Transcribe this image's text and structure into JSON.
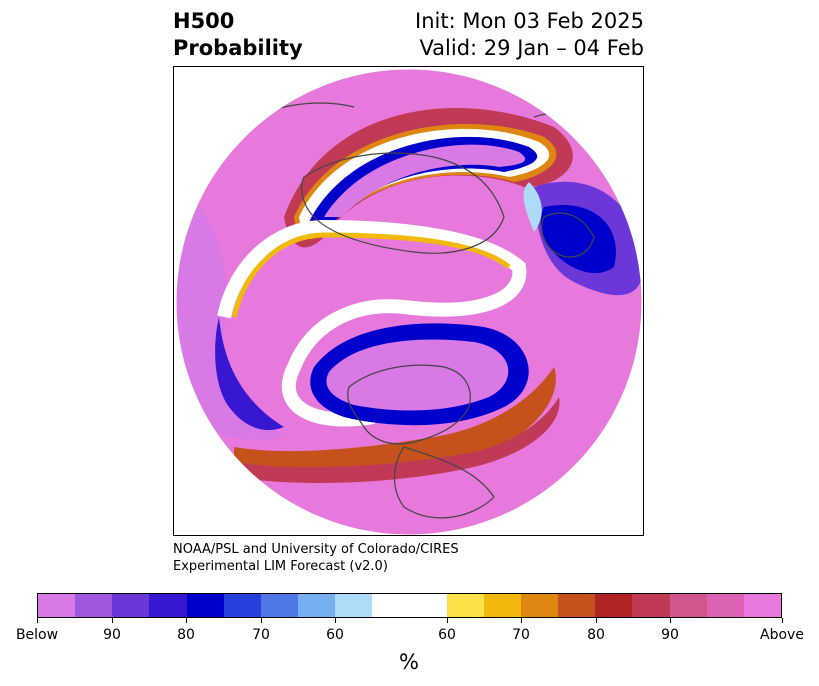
{
  "title": {
    "left_line1": "H500",
    "left_line2": "Probability",
    "right_line1": "Init: Mon 03 Feb 2025",
    "right_line2": "Valid: 29 Jan – 04 Feb"
  },
  "credit": {
    "line1": "NOAA/PSL and University of Colorado/CIRES",
    "line2": "Experimental LIM Forecast (v2.0)"
  },
  "map": {
    "projection": "north-polar-stereographic",
    "fields": [
      "below-normal-probability",
      "above-normal-probability"
    ],
    "overlays": [
      "coastlines",
      "country-borders",
      "us-state-borders"
    ]
  },
  "colorbar": {
    "unit_label": "%",
    "colors": [
      "#d879e6",
      "#9e57de",
      "#6b37d8",
      "#3717d2",
      "#0000cd",
      "#2840db",
      "#4f78e6",
      "#75aff0",
      "#aedcf8",
      "#ffffff",
      "#fde14a",
      "#f2b90c",
      "#df8612",
      "#c5521c",
      "#b22424",
      "#c13a55",
      "#d1568e",
      "#dc62b3",
      "#e679db"
    ],
    "tick_labels": [
      "Below",
      "90",
      "80",
      "70",
      "60",
      "60",
      "70",
      "80",
      "90",
      "Above"
    ]
  }
}
